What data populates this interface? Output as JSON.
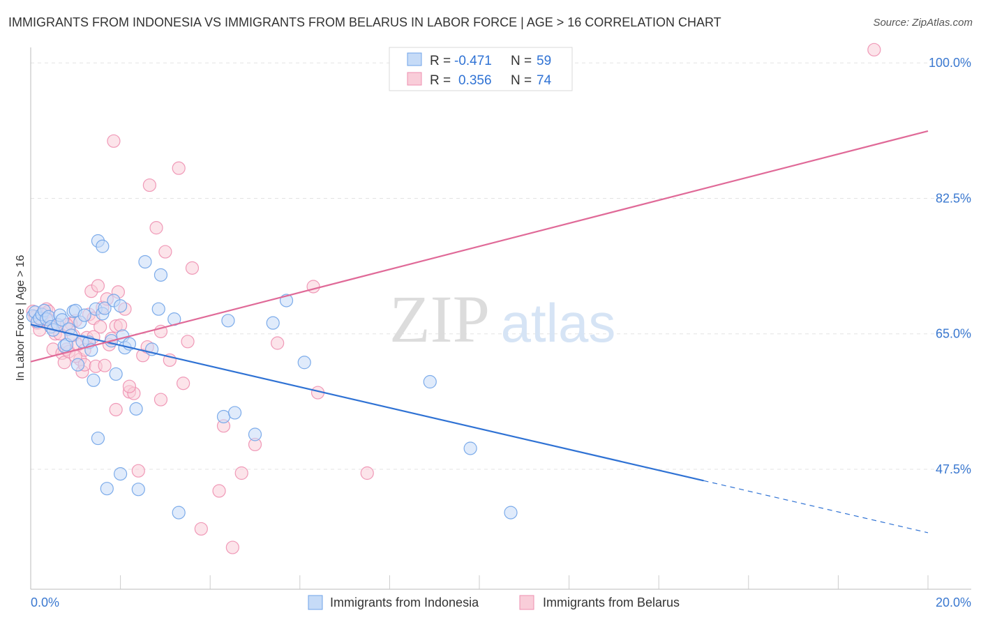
{
  "chart_data": {
    "type": "scatter",
    "title": "IMMIGRANTS FROM INDONESIA VS IMMIGRANTS FROM BELARUS IN LABOR FORCE | AGE > 16 CORRELATION CHART",
    "source": "Source: ZipAtlas.com",
    "ylabel": "In Labor Force | Age > 16",
    "xlim": [
      0,
      20
    ],
    "ylim": [
      32,
      102
    ],
    "x_tick_labels": [
      "0.0%",
      "20.0%"
    ],
    "y_ticks": [
      47.5,
      65.0,
      82.5,
      100.0
    ],
    "y_tick_labels": [
      "47.5%",
      "65.0%",
      "82.5%",
      "100.0%"
    ],
    "grid": "horizontal dashed",
    "legend_position": "top-center",
    "watermark": "ZIPatlas",
    "stats_legend": [
      {
        "r_label": "R =",
        "r_value": "-0.471",
        "n_label": "N =",
        "n_value": "59"
      },
      {
        "r_label": "R =",
        "r_value": "0.356",
        "n_label": "N =",
        "n_value": "74"
      }
    ],
    "series": [
      {
        "name": "Immigrants from Indonesia",
        "color": "#6fa3e8",
        "fill": "#c6dbf7",
        "line_color": "#2f72d4",
        "trend": {
          "x0": 0.0,
          "y0": 66.2,
          "x_solid_end": 15.0,
          "x1": 20.0,
          "y1": 39.3
        },
        "x": [
          0.05,
          0.1,
          0.15,
          0.2,
          0.25,
          0.3,
          0.35,
          0.4,
          0.45,
          0.5,
          0.6,
          0.65,
          0.7,
          0.75,
          0.8,
          0.85,
          0.9,
          0.95,
          1.0,
          1.05,
          1.1,
          1.15,
          1.2,
          1.3,
          1.35,
          1.4,
          1.45,
          1.5,
          1.6,
          1.65,
          1.7,
          1.8,
          1.85,
          1.9,
          2.0,
          2.05,
          2.1,
          2.2,
          2.35,
          2.4,
          2.55,
          2.7,
          2.85,
          2.9,
          3.2,
          3.3,
          4.3,
          4.4,
          4.55,
          5.0,
          5.4,
          5.7,
          6.1,
          8.9,
          9.8,
          10.7,
          1.5,
          2.0,
          1.6
        ],
        "y": [
          67.3,
          67.8,
          66.6,
          67.0,
          67.5,
          68.0,
          66.9,
          67.2,
          65.9,
          65.5,
          66.2,
          67.4,
          66.8,
          63.4,
          63.6,
          65.6,
          64.8,
          67.9,
          68.0,
          61.0,
          66.5,
          64.0,
          67.4,
          63.9,
          62.9,
          59.0,
          68.2,
          51.5,
          67.6,
          68.3,
          45.0,
          64.1,
          69.3,
          59.8,
          68.6,
          64.7,
          63.2,
          63.7,
          55.3,
          44.9,
          74.3,
          63.0,
          68.2,
          72.6,
          66.9,
          41.9,
          54.3,
          66.7,
          54.8,
          52.0,
          66.4,
          69.3,
          61.3,
          58.8,
          50.2,
          41.9,
          77.0,
          46.9,
          76.3
        ]
      },
      {
        "name": "Immigrants from Belarus",
        "color": "#ee8fb0",
        "fill": "#f9cdd9",
        "line_color": "#e06a98",
        "trend": {
          "x0": 0.0,
          "y0": 61.4,
          "x1": 20.0,
          "y1": 91.2
        },
        "x": [
          0.05,
          0.1,
          0.15,
          0.2,
          0.25,
          0.3,
          0.35,
          0.4,
          0.45,
          0.5,
          0.55,
          0.6,
          0.65,
          0.7,
          0.75,
          0.8,
          0.85,
          0.9,
          0.95,
          1.0,
          1.05,
          1.1,
          1.15,
          1.2,
          1.25,
          1.3,
          1.35,
          1.4,
          1.45,
          1.5,
          1.55,
          1.6,
          1.65,
          1.7,
          1.75,
          1.8,
          1.85,
          1.9,
          1.95,
          2.0,
          2.1,
          2.2,
          2.3,
          2.4,
          2.5,
          2.65,
          2.8,
          2.9,
          3.0,
          3.3,
          3.4,
          3.5,
          3.6,
          3.8,
          4.2,
          4.3,
          4.5,
          4.7,
          5.0,
          5.5,
          6.3,
          6.4,
          7.5,
          18.8,
          0.8,
          1.2,
          1.4,
          2.2,
          2.6,
          3.1,
          0.4,
          1.0,
          1.9,
          2.9
        ],
        "y": [
          67.9,
          67.2,
          66.4,
          65.5,
          66.8,
          67.6,
          68.2,
          67.9,
          65.9,
          63.0,
          65.0,
          66.1,
          65.0,
          62.5,
          61.3,
          63.0,
          62.7,
          66.3,
          64.8,
          66.7,
          63.6,
          61.7,
          60.1,
          61.0,
          64.5,
          67.5,
          70.5,
          67.0,
          60.8,
          71.2,
          65.9,
          68.4,
          60.9,
          69.5,
          63.6,
          64.4,
          89.9,
          66.0,
          70.4,
          66.1,
          68.2,
          57.5,
          57.3,
          47.3,
          62.2,
          84.2,
          78.7,
          65.3,
          75.6,
          86.4,
          58.6,
          64.0,
          73.5,
          39.8,
          44.7,
          53.1,
          37.4,
          47.0,
          50.7,
          63.8,
          71.1,
          57.4,
          47.0,
          101.7,
          66.2,
          62.9,
          64.6,
          58.2,
          63.3,
          61.6,
          66.8,
          62.1,
          55.2,
          56.5
        ]
      }
    ]
  }
}
